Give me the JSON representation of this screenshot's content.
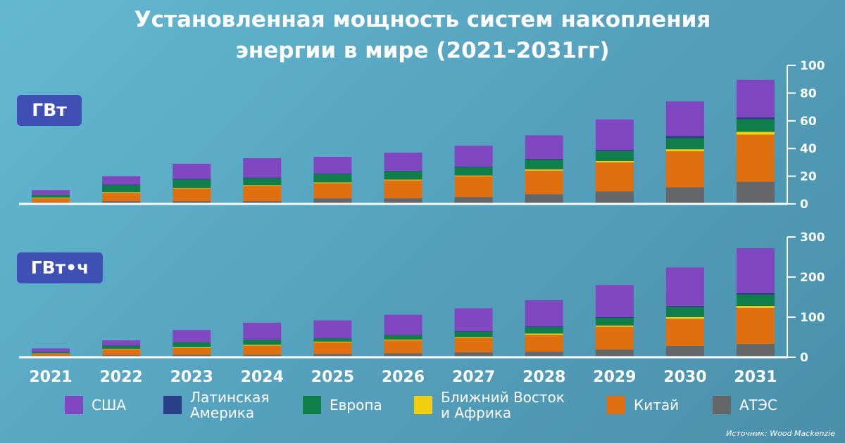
{
  "title": {
    "line1": "Установленная мощность систем накопления",
    "line2": "энергии в мире (2021-2031гг)"
  },
  "source": "Источник: Wood Mackenzie",
  "colors": {
    "АТЭС": "#646668",
    "Китай": "#e0700f",
    "Ближний Восток и Африка": "#f0d00e",
    "Европа": "#0f7e4b",
    "Латинская Америка": "#2b3f86",
    "США": "#8047c0",
    "badge": "#3f4fb3"
  },
  "legend": [
    {
      "label": "США",
      "color": "#8047c0"
    },
    {
      "label": "Латинская\nАмерика",
      "color": "#2b3f86"
    },
    {
      "label": "Европа",
      "color": "#0f7e4b"
    },
    {
      "label": "Ближний Восток\nи Африка",
      "color": "#f0d00e"
    },
    {
      "label": "Китай",
      "color": "#e0700f"
    },
    {
      "label": "АТЭС",
      "color": "#646668"
    }
  ],
  "chart_data": [
    {
      "type": "bar",
      "stacked": true,
      "unit_label": "ГВт",
      "categories": [
        "2021",
        "2022",
        "2023",
        "2024",
        "2025",
        "2026",
        "2027",
        "2028",
        "2029",
        "2030",
        "2031"
      ],
      "ylim": [
        0,
        100
      ],
      "yticks": [
        0,
        20,
        40,
        60,
        80,
        100
      ],
      "series": [
        {
          "name": "АТЭС",
          "values": [
            1,
            2,
            2,
            2,
            4,
            4,
            5,
            7,
            9,
            12,
            16
          ]
        },
        {
          "name": "Китай",
          "values": [
            3,
            6,
            9,
            11,
            11,
            13,
            15,
            17,
            21,
            26,
            34
          ]
        },
        {
          "name": "Ближний Восток и Африка",
          "values": [
            0.5,
            0.5,
            0.5,
            0.5,
            0.5,
            0.5,
            0.5,
            1,
            1,
            1.5,
            2
          ]
        },
        {
          "name": "Европа",
          "values": [
            2,
            5,
            6,
            5,
            6,
            6,
            6,
            7,
            7,
            8,
            9
          ]
        },
        {
          "name": "Латинская Америка",
          "values": [
            0.2,
            0.5,
            0.5,
            0.5,
            0.5,
            0.5,
            0.5,
            0.5,
            1,
            1.5,
            1.5
          ]
        },
        {
          "name": "США",
          "values": [
            3.3,
            6,
            11,
            14,
            12,
            13,
            15,
            17,
            22,
            25,
            27
          ]
        }
      ],
      "grid": false,
      "y_axis_position": "right"
    },
    {
      "type": "bar",
      "stacked": true,
      "unit_label": "ГВт•ч",
      "categories": [
        "2021",
        "2022",
        "2023",
        "2024",
        "2025",
        "2026",
        "2027",
        "2028",
        "2029",
        "2030",
        "2031"
      ],
      "ylim": [
        0,
        300
      ],
      "yticks": [
        0,
        100,
        200,
        300
      ],
      "series": [
        {
          "name": "АТЭС",
          "values": [
            3,
            5,
            6,
            6,
            8,
            10,
            12,
            14,
            19,
            28,
            33
          ]
        },
        {
          "name": "Китай",
          "values": [
            6,
            15,
            17,
            23,
            29,
            32,
            36,
            42,
            57,
            68,
            90
          ]
        },
        {
          "name": "Ближний Восток и Африка",
          "values": [
            0.5,
            1,
            2,
            2,
            2,
            2,
            2,
            3,
            3,
            4,
            5
          ]
        },
        {
          "name": "Европа",
          "values": [
            3,
            7,
            12,
            12,
            8,
            11,
            14,
            16,
            19,
            25,
            28
          ]
        },
        {
          "name": "Латинская Америка",
          "values": [
            0.5,
            1,
            1,
            1,
            1,
            1,
            1,
            2,
            2,
            3,
            4
          ]
        },
        {
          "name": "США",
          "values": [
            9,
            13,
            30,
            42,
            44,
            50,
            57,
            65,
            80,
            96,
            112
          ]
        }
      ],
      "grid": false,
      "y_axis_position": "right"
    }
  ]
}
